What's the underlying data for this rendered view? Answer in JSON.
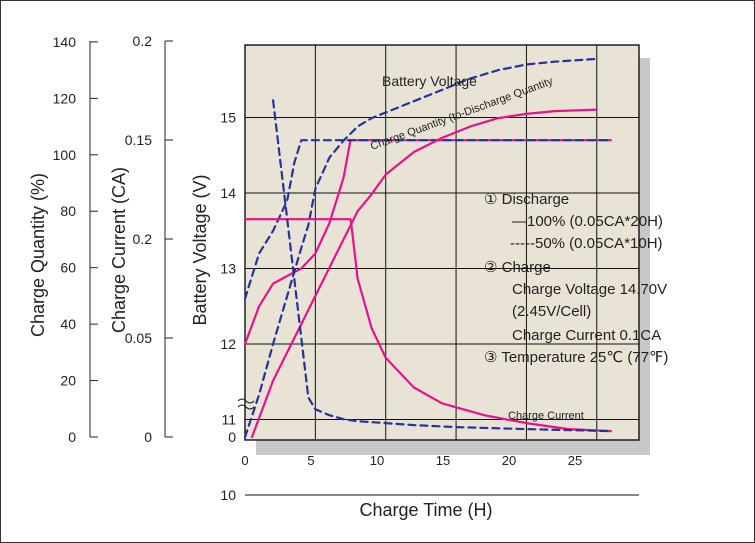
{
  "chart_data": {
    "type": "line",
    "xlabel": "Charge Time (H)",
    "xlim": [
      0,
      28
    ],
    "x_ticks": [
      "0",
      "5",
      "10",
      "15",
      "20",
      "25"
    ],
    "axes": {
      "charge_quantity": {
        "label": "Charge Quantity (%)",
        "ticks": [
          "140",
          "120",
          "100",
          "80",
          "60",
          "40",
          "20",
          "0"
        ]
      },
      "charge_current": {
        "label": "Charge Current (CA)",
        "ticks": [
          "0.2",
          "0.15",
          "0.2",
          "0.05",
          "0"
        ]
      },
      "battery_voltage": {
        "label": "Battery Voltage (V)",
        "ticks": [
          "15",
          "14",
          "13",
          "12",
          "11",
          "10",
          "0"
        ]
      }
    },
    "colors": {
      "discharge_100": "#e8138a",
      "discharge_50": "#27339a",
      "plot_bg": "#e8e3d5",
      "shadow": "#c8c8c8"
    },
    "annotations": {
      "battery_voltage": "Battery Voltage",
      "charge_quantity": "Charge Quantity (to-Discharge Quantity",
      "charge_current": "Charge Current"
    },
    "legend": {
      "l1": "① Discharge",
      "l2": "—100% (0.05CA*20H)",
      "l3": "-----50% (0.05CA*10H)",
      "l4": "② Charge",
      "l5": "Charge Voltage 14.70V",
      "l6": "(2.45V/Cell)",
      "l7": "Charge Current 0.1CA",
      "l8": "③ Temperature 25℃ (77℉)"
    },
    "series": [
      {
        "name": "Battery Voltage",
        "scale": "battery_voltage",
        "discharge": "100%",
        "x": [
          0,
          1,
          2,
          3,
          4,
          5,
          6,
          7,
          7.5,
          8,
          26
        ],
        "y": [
          12.0,
          12.5,
          12.8,
          12.9,
          13.0,
          13.2,
          13.6,
          14.2,
          14.7,
          14.7,
          14.7
        ]
      },
      {
        "name": "Battery Voltage",
        "scale": "battery_voltage",
        "discharge": "50%",
        "x": [
          0,
          1,
          2,
          3,
          3.5,
          4,
          26
        ],
        "y": [
          12.6,
          13.2,
          13.5,
          13.9,
          14.4,
          14.7,
          14.7
        ]
      },
      {
        "name": "Charge Quantity",
        "scale": "charge_quantity",
        "discharge": "100%",
        "x": [
          0.5,
          2,
          4,
          6,
          7,
          8,
          9,
          10,
          12,
          14,
          16,
          18,
          20,
          22,
          25
        ],
        "y": [
          0,
          20,
          40,
          60,
          70,
          80,
          86,
          93,
          101,
          106,
          110,
          113,
          114.5,
          115.5,
          116
        ]
      },
      {
        "name": "Charge Quantity",
        "scale": "charge_quantity",
        "discharge": "50%",
        "x": [
          0,
          1,
          2,
          3,
          4,
          4.5,
          5,
          6,
          7,
          8,
          9,
          10,
          12,
          14,
          16,
          18,
          20,
          22,
          25
        ],
        "y": [
          0,
          15,
          33,
          50,
          67,
          75,
          88,
          99,
          105,
          110,
          113,
          115,
          119,
          123,
          127,
          130,
          132,
          133,
          134
        ]
      },
      {
        "name": "Charge Current",
        "scale": "charge_current",
        "discharge": "100%",
        "x": [
          0,
          7.5,
          7.6,
          8,
          9,
          10,
          12,
          14,
          17,
          20,
          23,
          26
        ],
        "y": [
          0.11,
          0.11,
          0.105,
          0.08,
          0.055,
          0.04,
          0.025,
          0.017,
          0.011,
          0.007,
          0.004,
          0.003
        ]
      },
      {
        "name": "Charge Current",
        "scale": "charge_current",
        "discharge": "50%",
        "x": [
          2,
          3,
          4,
          4.5,
          5,
          6,
          7,
          8,
          10,
          12,
          15,
          20,
          26
        ],
        "y": [
          0.17,
          0.11,
          0.05,
          0.02,
          0.014,
          0.011,
          0.009,
          0.008,
          0.007,
          0.006,
          0.005,
          0.004,
          0.003
        ]
      }
    ]
  }
}
